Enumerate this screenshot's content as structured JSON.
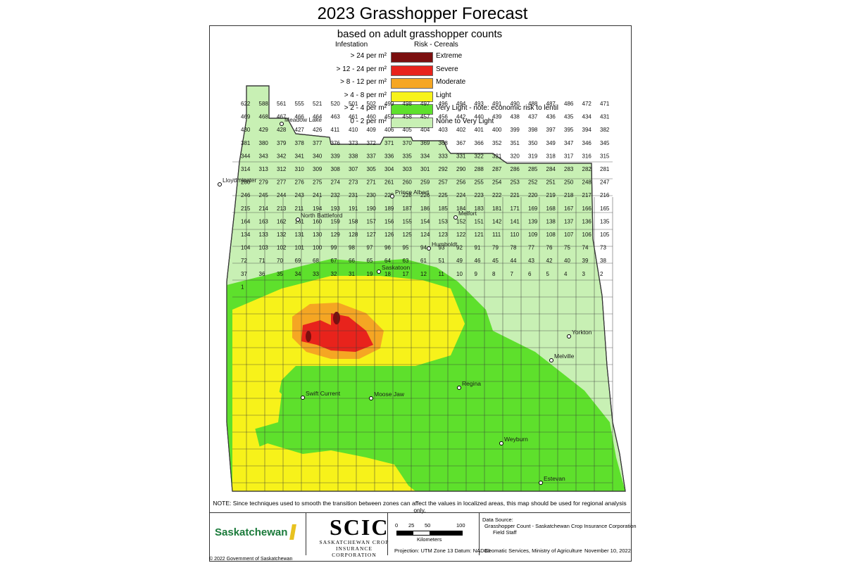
{
  "title": "2023 Grasshopper Forecast",
  "subtitle": "based on adult grasshopper counts",
  "legend": {
    "col_infestation": "Infestation",
    "col_risk": "Risk - Cereals",
    "items": [
      {
        "range": "> 24 per m²",
        "label": "Extreme",
        "color": "#7b0f0f"
      },
      {
        "range": "> 12 - 24 per m²",
        "label": "Severe",
        "color": "#e8231c"
      },
      {
        "range": ">  8 - 12 per m²",
        "label": "Moderate",
        "color": "#f5a623"
      },
      {
        "range": ">  4 -   8 per m²",
        "label": "Light",
        "color": "#f7f21a"
      },
      {
        "range": ">  2 -   4 per m²",
        "label": "Very Light - note: economic risk to lentil",
        "color": "#5ee02c"
      },
      {
        "range": "0 -   2 per m²",
        "label": "None to Very Light",
        "color": "#c8f0b4"
      }
    ]
  },
  "cities": [
    {
      "name": "Meadow Lake"
    },
    {
      "name": "Lloydminster"
    },
    {
      "name": "North Battleford"
    },
    {
      "name": "Prince Albert"
    },
    {
      "name": "Melfort"
    },
    {
      "name": "Saskatoon"
    },
    {
      "name": "Humboldt"
    },
    {
      "name": "Yorkton"
    },
    {
      "name": "Melville"
    },
    {
      "name": "Regina"
    },
    {
      "name": "Moose Jaw"
    },
    {
      "name": "Swift Current"
    },
    {
      "name": "Weyburn"
    },
    {
      "name": "Estevan"
    }
  ],
  "rm_numbers": [
    "622",
    "588",
    "561",
    "555",
    "521",
    "520",
    "501",
    "502",
    "499",
    "498",
    "497",
    "496",
    "494",
    "493",
    "491",
    "490",
    "488",
    "487",
    "486",
    "472",
    "471",
    "469",
    "468",
    "467",
    "466",
    "464",
    "463",
    "461",
    "460",
    "459",
    "458",
    "457",
    "456",
    "442",
    "440",
    "439",
    "438",
    "437",
    "436",
    "435",
    "434",
    "431",
    "430",
    "429",
    "428",
    "427",
    "426",
    "411",
    "410",
    "409",
    "406",
    "405",
    "404",
    "403",
    "402",
    "401",
    "400",
    "399",
    "398",
    "397",
    "395",
    "394",
    "382",
    "381",
    "380",
    "379",
    "378",
    "377",
    "376",
    "373",
    "372",
    "371",
    "370",
    "369",
    "368",
    "367",
    "366",
    "352",
    "351",
    "350",
    "349",
    "347",
    "346",
    "345",
    "344",
    "343",
    "342",
    "341",
    "340",
    "339",
    "338",
    "337",
    "336",
    "335",
    "334",
    "333",
    "331",
    "322",
    "321",
    "320",
    "319",
    "318",
    "317",
    "316",
    "315",
    "314",
    "313",
    "312",
    "310",
    "309",
    "308",
    "307",
    "305",
    "304",
    "303",
    "301",
    "292",
    "290",
    "288",
    "287",
    "286",
    "285",
    "284",
    "283",
    "282",
    "281",
    "280",
    "279",
    "277",
    "276",
    "275",
    "274",
    "273",
    "271",
    "261",
    "260",
    "259",
    "257",
    "256",
    "255",
    "254",
    "253",
    "252",
    "251",
    "250",
    "248",
    "247",
    "246",
    "245",
    "244",
    "243",
    "241",
    "232",
    "231",
    "230",
    "229",
    "228",
    "226",
    "225",
    "224",
    "223",
    "222",
    "221",
    "220",
    "219",
    "218",
    "217",
    "216",
    "215",
    "214",
    "213",
    "211",
    "194",
    "193",
    "191",
    "190",
    "189",
    "187",
    "186",
    "185",
    "184",
    "183",
    "181",
    "171",
    "169",
    "168",
    "167",
    "166",
    "165",
    "164",
    "163",
    "162",
    "161",
    "160",
    "159",
    "158",
    "157",
    "156",
    "155",
    "154",
    "153",
    "152",
    "151",
    "142",
    "141",
    "139",
    "138",
    "137",
    "136",
    "135",
    "134",
    "133",
    "132",
    "131",
    "130",
    "129",
    "128",
    "127",
    "126",
    "125",
    "124",
    "123",
    "122",
    "121",
    "111",
    "110",
    "109",
    "108",
    "107",
    "106",
    "105",
    "104",
    "103",
    "102",
    "101",
    "100",
    "99",
    "98",
    "97",
    "96",
    "95",
    "94",
    "93",
    "92",
    "91",
    "79",
    "78",
    "77",
    "76",
    "75",
    "74",
    "73",
    "72",
    "71",
    "70",
    "69",
    "68",
    "67",
    "66",
    "65",
    "64",
    "63",
    "61",
    "51",
    "49",
    "46",
    "45",
    "44",
    "43",
    "42",
    "40",
    "39",
    "38",
    "37",
    "36",
    "35",
    "34",
    "33",
    "32",
    "31",
    "19",
    "18",
    "17",
    "12",
    "11",
    "10",
    "9",
    "8",
    "7",
    "6",
    "5",
    "4",
    "3",
    "2",
    "1"
  ],
  "note": "NOTE:  Since techniques used to smooth the transition between zones can affect the values in localized areas, this map should be used for regional analysis only.",
  "footer": {
    "sask_logo": "Saskatchewan",
    "scic_logo": "SCIC",
    "scic_sub": "SASKATCHEWAN CROP INSURANCE CORPORATION",
    "scale_ticks": [
      "0",
      "25",
      "50",
      "100"
    ],
    "scale_unit": "Kilometers",
    "projection": "Projection: UTM Zone 13   Datum: NAD83",
    "source_head": "Data Source:",
    "source_line1": "Grasshopper Count - Saskatchewan Crop Insurance Corporation",
    "source_line2": "Field Staff",
    "credits": "Geomatic Services, Ministry of Agriculture",
    "date": "November 10, 2022",
    "copyright": "© 2022 Government of Saskatchewan"
  }
}
